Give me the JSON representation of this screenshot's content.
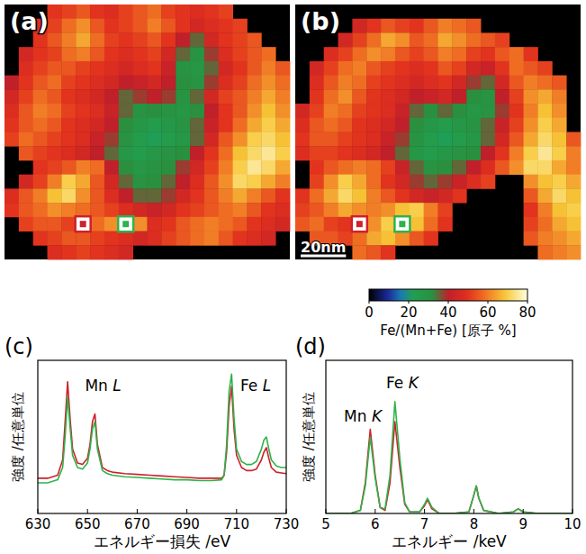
{
  "chart_data": [
    {
      "type": "heatmap",
      "panel": "(a)",
      "tick_labels": false,
      "cells": [
        [
          null,
          null,
          null,
          50,
          52,
          55,
          50,
          48,
          52,
          55,
          58,
          52,
          50,
          48,
          50,
          52,
          null,
          null,
          null,
          null
        ],
        [
          null,
          null,
          48,
          52,
          58,
          62,
          55,
          50,
          52,
          55,
          60,
          55,
          50,
          45,
          48,
          50,
          52,
          null,
          null,
          null
        ],
        [
          null,
          null,
          50,
          55,
          60,
          65,
          58,
          52,
          50,
          52,
          55,
          50,
          40,
          35,
          45,
          50,
          52,
          55,
          null,
          null
        ],
        [
          null,
          45,
          50,
          52,
          58,
          60,
          55,
          50,
          48,
          50,
          52,
          45,
          35,
          30,
          38,
          48,
          52,
          55,
          58,
          null
        ],
        [
          null,
          48,
          52,
          55,
          55,
          52,
          50,
          48,
          45,
          48,
          50,
          42,
          30,
          28,
          35,
          45,
          50,
          55,
          60,
          55
        ],
        [
          40,
          50,
          55,
          58,
          52,
          50,
          48,
          45,
          40,
          42,
          45,
          40,
          32,
          30,
          38,
          48,
          52,
          58,
          62,
          58
        ],
        [
          45,
          52,
          58,
          55,
          50,
          48,
          45,
          40,
          35,
          38,
          40,
          38,
          30,
          35,
          45,
          52,
          55,
          60,
          65,
          60
        ],
        [
          48,
          55,
          60,
          58,
          52,
          50,
          48,
          42,
          35,
          30,
          32,
          30,
          28,
          32,
          40,
          50,
          55,
          62,
          68,
          62
        ],
        [
          50,
          55,
          58,
          55,
          50,
          48,
          45,
          40,
          32,
          28,
          25,
          28,
          30,
          35,
          42,
          50,
          58,
          65,
          70,
          65
        ],
        [
          52,
          58,
          55,
          52,
          50,
          48,
          42,
          38,
          30,
          25,
          22,
          25,
          28,
          35,
          45,
          55,
          62,
          70,
          72,
          68
        ],
        [
          null,
          55,
          52,
          50,
          48,
          45,
          40,
          35,
          28,
          25,
          28,
          30,
          32,
          40,
          50,
          58,
          68,
          72,
          75,
          70
        ],
        [
          null,
          null,
          50,
          52,
          55,
          60,
          58,
          40,
          32,
          28,
          30,
          32,
          38,
          45,
          52,
          60,
          70,
          75,
          72,
          65
        ],
        [
          null,
          45,
          52,
          60,
          70,
          65,
          55,
          45,
          35,
          30,
          32,
          35,
          40,
          48,
          55,
          62,
          72,
          70,
          65,
          60
        ],
        [
          48,
          55,
          60,
          68,
          72,
          62,
          55,
          48,
          40,
          35,
          35,
          38,
          45,
          50,
          55,
          60,
          65,
          60,
          55,
          50
        ],
        [
          50,
          55,
          58,
          62,
          60,
          58,
          55,
          52,
          48,
          45,
          42,
          45,
          50,
          52,
          55,
          58,
          60,
          55,
          50,
          48
        ],
        [
          null,
          52,
          55,
          55,
          52,
          50,
          58,
          62,
          65,
          62,
          48,
          50,
          55,
          58,
          60,
          58,
          55,
          50,
          48,
          45
        ],
        [
          null,
          null,
          50,
          52,
          55,
          55,
          52,
          50,
          48,
          45,
          48,
          52,
          55,
          58,
          60,
          55,
          50,
          48,
          45,
          null
        ],
        [
          null,
          null,
          null,
          48,
          50,
          52,
          50,
          48,
          45,
          null,
          null,
          null,
          null,
          null,
          null,
          null,
          null,
          null,
          null,
          null
        ]
      ],
      "regions": [
        {
          "row": 15,
          "col": 5,
          "color": "#d0202a"
        },
        {
          "row": 15,
          "col": 8,
          "color": "#2db34a"
        }
      ]
    },
    {
      "type": "heatmap",
      "panel": "(b)",
      "tick_labels": false,
      "scale_bar": "20nm",
      "cells": [
        [
          null,
          null,
          null,
          null,
          null,
          null,
          null,
          null,
          null,
          null,
          null,
          null,
          null,
          null,
          null,
          null,
          null,
          null,
          null,
          null
        ],
        [
          null,
          null,
          null,
          null,
          45,
          50,
          55,
          52,
          50,
          55,
          60,
          58,
          55,
          null,
          null,
          null,
          null,
          null,
          null,
          null
        ],
        [
          null,
          null,
          null,
          45,
          52,
          58,
          65,
          62,
          55,
          58,
          65,
          62,
          58,
          55,
          52,
          null,
          null,
          null,
          null,
          null
        ],
        [
          null,
          null,
          48,
          52,
          58,
          62,
          60,
          55,
          52,
          55,
          60,
          58,
          52,
          50,
          55,
          58,
          50,
          null,
          null,
          null
        ],
        [
          null,
          45,
          52,
          58,
          60,
          55,
          52,
          50,
          48,
          50,
          55,
          52,
          45,
          42,
          50,
          58,
          55,
          52,
          null,
          null
        ],
        [
          null,
          48,
          55,
          60,
          58,
          52,
          50,
          48,
          45,
          48,
          50,
          45,
          38,
          35,
          45,
          55,
          60,
          58,
          55,
          null
        ],
        [
          null,
          50,
          58,
          62,
          55,
          50,
          48,
          45,
          40,
          42,
          45,
          40,
          32,
          30,
          40,
          52,
          62,
          65,
          60,
          null
        ],
        [
          45,
          52,
          60,
          58,
          52,
          50,
          48,
          42,
          35,
          32,
          35,
          32,
          28,
          30,
          38,
          50,
          60,
          68,
          62,
          null
        ],
        [
          48,
          55,
          58,
          55,
          50,
          48,
          45,
          40,
          32,
          28,
          25,
          28,
          30,
          35,
          42,
          52,
          62,
          70,
          65,
          null
        ],
        [
          50,
          55,
          55,
          52,
          50,
          48,
          42,
          38,
          30,
          25,
          22,
          25,
          28,
          35,
          45,
          55,
          65,
          72,
          68,
          55
        ],
        [
          48,
          52,
          52,
          50,
          48,
          45,
          40,
          35,
          28,
          25,
          28,
          30,
          32,
          40,
          50,
          60,
          70,
          75,
          70,
          60
        ],
        [
          null,
          50,
          55,
          58,
          60,
          58,
          52,
          42,
          35,
          30,
          32,
          35,
          40,
          48,
          55,
          62,
          72,
          72,
          65,
          60
        ],
        [
          null,
          52,
          62,
          70,
          65,
          58,
          50,
          45,
          38,
          35,
          38,
          42,
          48,
          52,
          null,
          null,
          62,
          68,
          70,
          65
        ],
        [
          50,
          58,
          65,
          72,
          68,
          60,
          55,
          50,
          45,
          42,
          45,
          50,
          null,
          null,
          null,
          null,
          55,
          65,
          72,
          68
        ],
        [
          52,
          55,
          60,
          65,
          62,
          60,
          62,
          68,
          70,
          60,
          52,
          null,
          null,
          null,
          null,
          null,
          50,
          60,
          68,
          70
        ],
        [
          55,
          58,
          52,
          50,
          55,
          62,
          70,
          72,
          68,
          58,
          50,
          null,
          null,
          null,
          null,
          null,
          52,
          58,
          65,
          68
        ],
        [
          null,
          55,
          55,
          52,
          58,
          65,
          68,
          62,
          55,
          50,
          null,
          null,
          null,
          null,
          null,
          null,
          55,
          60,
          62,
          65
        ],
        [
          null,
          null,
          null,
          null,
          58,
          55,
          50,
          null,
          null,
          null,
          null,
          null,
          null,
          null,
          null,
          null,
          null,
          58,
          60,
          62
        ]
      ],
      "regions": [
        {
          "row": 15,
          "col": 4,
          "color": "#d0202a"
        },
        {
          "row": 15,
          "col": 7,
          "color": "#2db34a"
        }
      ]
    },
    {
      "type": "line",
      "panel": "(c)",
      "x_label": "エネルギー損失 /eV",
      "y_label": "強度 /任意単位",
      "x": [
        630,
        632,
        634,
        636,
        638,
        640,
        641,
        642,
        643,
        644,
        646,
        648,
        650,
        651,
        652,
        653,
        654,
        656,
        658,
        660,
        665,
        670,
        675,
        680,
        685,
        690,
        695,
        700,
        704,
        705,
        706,
        707,
        708,
        709,
        710,
        712,
        714,
        716,
        718,
        720,
        721,
        722,
        723,
        724,
        726,
        728,
        730
      ],
      "xlim": [
        630,
        730
      ],
      "xticks": [
        630,
        650,
        670,
        690,
        710,
        730
      ],
      "ylim": [
        0,
        1
      ],
      "tick_labels": "x",
      "series": [
        {
          "color": "#d0202a",
          "values": [
            0.23,
            0.23,
            0.23,
            0.24,
            0.25,
            0.35,
            0.6,
            0.86,
            0.62,
            0.42,
            0.33,
            0.32,
            0.36,
            0.45,
            0.6,
            0.65,
            0.45,
            0.3,
            0.28,
            0.27,
            0.26,
            0.255,
            0.25,
            0.245,
            0.24,
            0.235,
            0.23,
            0.23,
            0.23,
            0.25,
            0.4,
            0.7,
            0.83,
            0.55,
            0.38,
            0.3,
            0.28,
            0.28,
            0.29,
            0.35,
            0.4,
            0.43,
            0.36,
            0.3,
            0.27,
            0.265,
            0.26
          ]
        },
        {
          "color": "#2db34a",
          "values": [
            0.2,
            0.2,
            0.2,
            0.21,
            0.22,
            0.3,
            0.5,
            0.76,
            0.56,
            0.38,
            0.3,
            0.29,
            0.33,
            0.42,
            0.55,
            0.6,
            0.42,
            0.28,
            0.26,
            0.25,
            0.24,
            0.235,
            0.23,
            0.225,
            0.22,
            0.22,
            0.215,
            0.215,
            0.22,
            0.25,
            0.45,
            0.8,
            0.91,
            0.62,
            0.42,
            0.34,
            0.32,
            0.32,
            0.34,
            0.42,
            0.48,
            0.5,
            0.42,
            0.35,
            0.31,
            0.3,
            0.3
          ]
        }
      ],
      "annotations": [
        {
          "text": "Mn L",
          "x": 649,
          "y": 0.8
        },
        {
          "text": "Fe L",
          "x": 711.5,
          "y": 0.8
        }
      ]
    },
    {
      "type": "line",
      "panel": "(d)",
      "x_label": "エネルギー /keV",
      "y_label": "強度 /任意単位",
      "x": [
        5,
        5.5,
        5.7,
        5.8,
        5.9,
        6.0,
        6.1,
        6.2,
        6.3,
        6.4,
        6.5,
        6.6,
        6.7,
        6.9,
        7.0,
        7.06,
        7.15,
        7.3,
        7.6,
        7.9,
        8.0,
        8.05,
        8.1,
        8.2,
        8.5,
        8.8,
        8.9,
        9.0,
        9.3,
        9.6,
        10
      ],
      "xlim": [
        5,
        10
      ],
      "xticks": [
        5,
        6,
        7,
        8,
        9,
        10
      ],
      "ylim": [
        0,
        1
      ],
      "tick_labels": "x",
      "series": [
        {
          "color": "#d0202a",
          "values": [
            0,
            0,
            0.02,
            0.2,
            0.55,
            0.25,
            0.04,
            0.02,
            0.2,
            0.6,
            0.3,
            0.06,
            0.01,
            0.01,
            0.05,
            0.09,
            0.03,
            0,
            0,
            0.01,
            0.12,
            0.18,
            0.1,
            0.02,
            0,
            0.01,
            0.03,
            0.01,
            0,
            0,
            0
          ]
        },
        {
          "color": "#2db34a",
          "values": [
            0,
            0,
            0.02,
            0.18,
            0.5,
            0.23,
            0.04,
            0.03,
            0.25,
            0.73,
            0.36,
            0.07,
            0.01,
            0.01,
            0.06,
            0.1,
            0.04,
            0,
            0,
            0.01,
            0.12,
            0.18,
            0.1,
            0.02,
            0,
            0.01,
            0.03,
            0.01,
            0,
            0,
            0
          ]
        }
      ],
      "annotations": [
        {
          "text": "Mn K",
          "x": 5.75,
          "y": 0.6
        },
        {
          "text": "Fe K",
          "x": 6.55,
          "y": 0.82
        }
      ]
    }
  ],
  "colorbar": {
    "range": [
      0,
      80
    ],
    "ticks": [
      0,
      20,
      40,
      60,
      80
    ],
    "label": "Fe/(Mn+Fe) [原子 %]"
  }
}
